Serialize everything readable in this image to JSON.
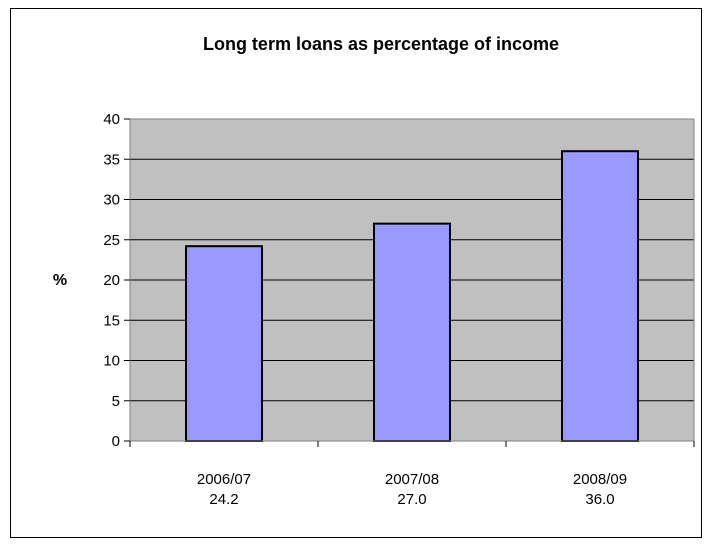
{
  "chart_data": {
    "type": "bar",
    "title": "Long term loans as percentage of income",
    "xlabel": "",
    "ylabel": "%",
    "categories": [
      "2006/07",
      "2007/08",
      "2008/09"
    ],
    "category_value_labels": [
      "24.2",
      "27.0",
      "36.0"
    ],
    "values": [
      24.2,
      27.0,
      36.0
    ],
    "ylim": [
      0,
      40
    ],
    "yticks": [
      0,
      5,
      10,
      15,
      20,
      25,
      30,
      35,
      40
    ],
    "grid": true,
    "legend": "none"
  },
  "colors": {
    "bar_fill": "#9999ff",
    "bar_stroke": "#000000",
    "plot_background": "#c0c0c0",
    "gridline": "#000000"
  }
}
